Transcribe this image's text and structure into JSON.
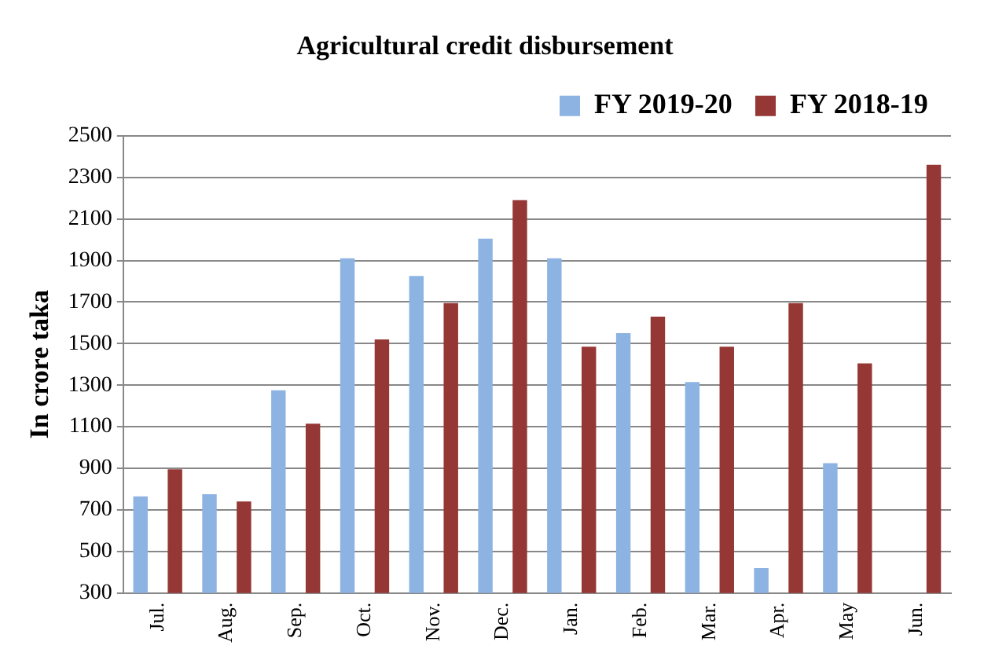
{
  "chart_data": {
    "type": "bar",
    "title": "Agricultural credit disbursement",
    "ylabel": "In crore taka",
    "categories": [
      "Jul.",
      "Aug.",
      "Sep.",
      "Oct.",
      "Nov.",
      "Dec.",
      "Jan.",
      "Feb.",
      "Mar.",
      "Apr.",
      "May",
      "Jun."
    ],
    "series": [
      {
        "name": "FY 2019-20",
        "color": "#8db3e2",
        "values": [
          765,
          775,
          1275,
          1910,
          1825,
          2005,
          1910,
          1550,
          1315,
          420,
          925,
          null
        ]
      },
      {
        "name": "FY 2018-19",
        "color": "#953735",
        "values": [
          895,
          740,
          1115,
          1520,
          1695,
          2190,
          1485,
          1630,
          1485,
          1695,
          1405,
          2360
        ]
      }
    ],
    "ylim": [
      300,
      2500
    ],
    "yticks": [
      300,
      500,
      700,
      900,
      1100,
      1300,
      1500,
      1700,
      1900,
      2100,
      2300,
      2500
    ],
    "grid": "y",
    "legend": "top right"
  }
}
